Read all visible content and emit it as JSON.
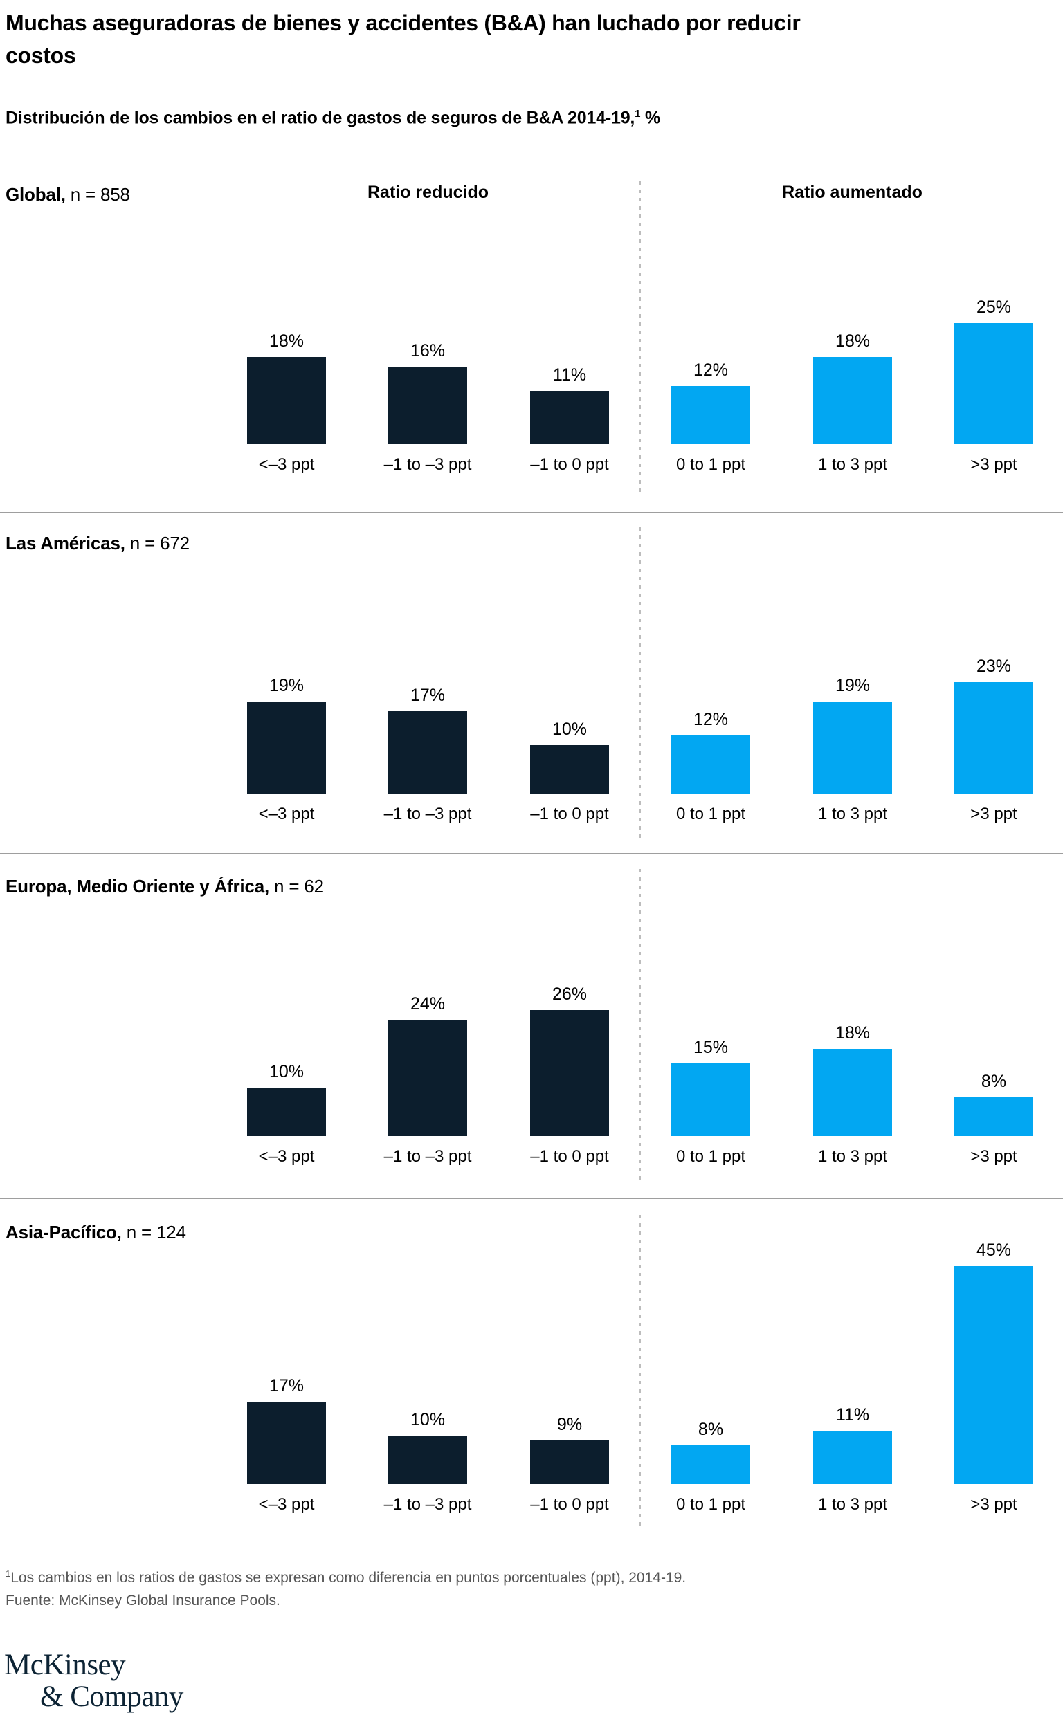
{
  "title": "Muchas aseguradoras de bienes y accidentes (B&A) han luchado por reducir costos",
  "subtitle": {
    "text": "Distribución de los cambios en el ratio de gastos de seguros de B&A 2014-19,",
    "sup": "1",
    "suffix": " %"
  },
  "column_headers": {
    "left": "Ratio reducido",
    "right": "Ratio aumentado"
  },
  "categories": [
    "<–3 ppt",
    "–1 to –3 ppt",
    "–1 to 0 ppt",
    "0 to 1 ppt",
    "1 to 3 ppt",
    ">3 ppt"
  ],
  "panels": [
    {
      "label": "Global,",
      "n": "n = 858",
      "values": [
        18,
        16,
        11,
        12,
        18,
        25
      ]
    },
    {
      "label": "Las Américas,",
      "n": "n = 672",
      "values": [
        19,
        17,
        10,
        12,
        19,
        23
      ]
    },
    {
      "label": "Europa, Medio Oriente y África,",
      "n": "n = 62",
      "values": [
        10,
        24,
        26,
        15,
        18,
        8
      ]
    },
    {
      "label": "Asia-Pacífico,",
      "n": "n = 124",
      "values": [
        17,
        10,
        9,
        8,
        11,
        45
      ]
    }
  ],
  "footnote": {
    "sup": "1",
    "text": "Los cambios en los ratios de gastos se expresan como diferencia en puntos porcentuales (ppt), 2014-19."
  },
  "source": "Fuente: McKinsey Global Insurance Pools.",
  "logo": {
    "line1": "McKinsey",
    "line2": "& Company"
  },
  "colors": {
    "ratio_reduced_bar": "#0c1e2d",
    "ratio_increased_bar": "#02a7f2"
  },
  "chart_data": {
    "type": "bar",
    "title": "Distribución de los cambios en el ratio de gastos de seguros de B&A 2014-19, %",
    "unit": "%",
    "categories": [
      "<–3 ppt",
      "–1 to –3 ppt",
      "–1 to 0 ppt",
      "0 to 1 ppt",
      "1 to 3 ppt",
      ">3 ppt"
    ],
    "category_groups": [
      {
        "name": "Ratio reducido",
        "category_indexes": [
          0,
          1,
          2
        ],
        "color": "#0c1e2d"
      },
      {
        "name": "Ratio aumentado",
        "category_indexes": [
          3,
          4,
          5
        ],
        "color": "#02a7f2"
      }
    ],
    "series": [
      {
        "name": "Global, n = 858",
        "values": [
          18,
          16,
          11,
          12,
          18,
          25
        ]
      },
      {
        "name": "Las Américas, n = 672",
        "values": [
          19,
          17,
          10,
          12,
          19,
          23
        ]
      },
      {
        "name": "Europa, Medio Oriente y África, n = 62",
        "values": [
          10,
          24,
          26,
          15,
          18,
          8
        ]
      },
      {
        "name": "Asia-Pacífico, n = 124",
        "values": [
          17,
          10,
          9,
          8,
          11,
          45
        ]
      }
    ],
    "layout": "four stacked panels, one per series; value labels above bars; dashed divider between reduced and increased groups",
    "ylim": [
      0,
      45
    ],
    "grid": false,
    "legend_position": "none"
  }
}
